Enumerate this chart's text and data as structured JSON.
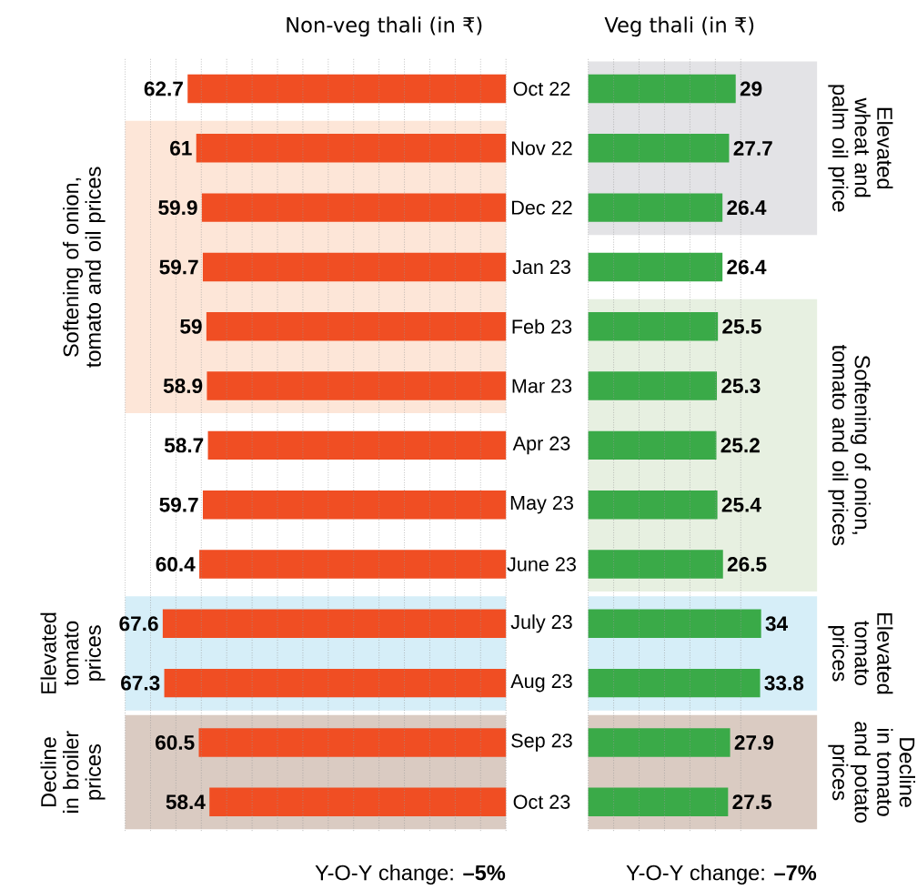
{
  "chart_data": [
    {
      "type": "bar",
      "orientation": "horizontal",
      "title": "Non-veg thali (in ₹)",
      "categories": [
        "Oct 22",
        "Nov 22",
        "Dec 22",
        "Jan 23",
        "Feb 23",
        "Mar 23",
        "Apr 23",
        "May 23",
        "June 23",
        "July 23",
        "Aug 23",
        "Sep 23",
        "Oct 23"
      ],
      "values": [
        62.7,
        61,
        59.9,
        59.7,
        59,
        58.9,
        58.7,
        59.7,
        60.4,
        67.6,
        67.3,
        60.5,
        58.4
      ],
      "color": "#f04e23",
      "data_labels": true,
      "xlim": [
        75,
        0
      ],
      "xticks": [
        {
          "value": 0,
          "label": null
        },
        {
          "value": 5,
          "label": null
        },
        {
          "value": 10,
          "label": null
        },
        {
          "value": 15,
          "label": null
        },
        {
          "value": 20,
          "label": null
        },
        {
          "value": 25,
          "label": null
        },
        {
          "value": 30,
          "label": null
        },
        {
          "value": 35,
          "label": null
        },
        {
          "value": 40,
          "label": null
        },
        {
          "value": 45,
          "label": null
        },
        {
          "value": 50,
          "label": null
        },
        {
          "value": 55,
          "label": null
        },
        {
          "value": 60,
          "label": null
        },
        {
          "value": 65,
          "label": null
        },
        {
          "value": 70,
          "label": null
        },
        {
          "value": 75,
          "label": null
        }
      ],
      "grid": "x",
      "tick_labels": "y",
      "bands": [
        {
          "axis": "y",
          "from": "Nov 22",
          "to": "Mar 23",
          "label": "Softening of onion, tomato and oil prices",
          "color": "#fde6d8"
        },
        {
          "axis": "y",
          "from": "July 23",
          "to": "Aug 23",
          "label": "Elevated tomato prices",
          "color": "#d6eef8"
        },
        {
          "axis": "y",
          "from": "Sep 23",
          "to": "Oct 23",
          "label": "Decline in broiler prices",
          "color": "#dacbc2"
        }
      ],
      "annotations": [
        "Y-O-Y change: **–5%**"
      ]
    },
    {
      "type": "bar",
      "orientation": "horizontal",
      "title": "Veg thali (in ₹)",
      "categories": [
        "Oct 22",
        "Nov 22",
        "Dec 22",
        "Jan 23",
        "Feb 23",
        "Mar 23",
        "Apr 23",
        "May 23",
        "June 23",
        "July 23",
        "Aug 23",
        "Sep 23",
        "Oct 23"
      ],
      "values": [
        29,
        27.7,
        26.4,
        26.4,
        25.5,
        25.3,
        25.2,
        25.4,
        26.5,
        34,
        33.8,
        27.9,
        27.5
      ],
      "color": "#3aaa48",
      "data_labels": true,
      "xlim": [
        0,
        45
      ],
      "xticks": [
        {
          "value": 0,
          "label": null
        },
        {
          "value": 5,
          "label": null
        },
        {
          "value": 10,
          "label": null
        },
        {
          "value": 15,
          "label": null
        },
        {
          "value": 20,
          "label": null
        },
        {
          "value": 25,
          "label": null
        },
        {
          "value": 30,
          "label": null
        }
      ],
      "grid": "x",
      "tick_labels": false,
      "bands": [
        {
          "axis": "y",
          "from": "Oct 22",
          "to": "Dec 22",
          "label": "Elevated wheat and palm oil price",
          "color": "#e3e3e6"
        },
        {
          "axis": "y",
          "from": "Feb 23",
          "to": "June 23",
          "label": "Softening of onion, tomato and oil prices",
          "color": "#e7f0e1"
        },
        {
          "axis": "y",
          "from": "July 23",
          "to": "Aug 23",
          "label": "Elevated tomato prices",
          "color": "#d6eef8"
        },
        {
          "axis": "y",
          "from": "Sep 23",
          "to": "Oct 23",
          "label": "Decline in tomato and potato prices",
          "color": "#dacbc2"
        }
      ],
      "annotations": [
        "Y-O-Y change: **–7%**"
      ]
    }
  ]
}
